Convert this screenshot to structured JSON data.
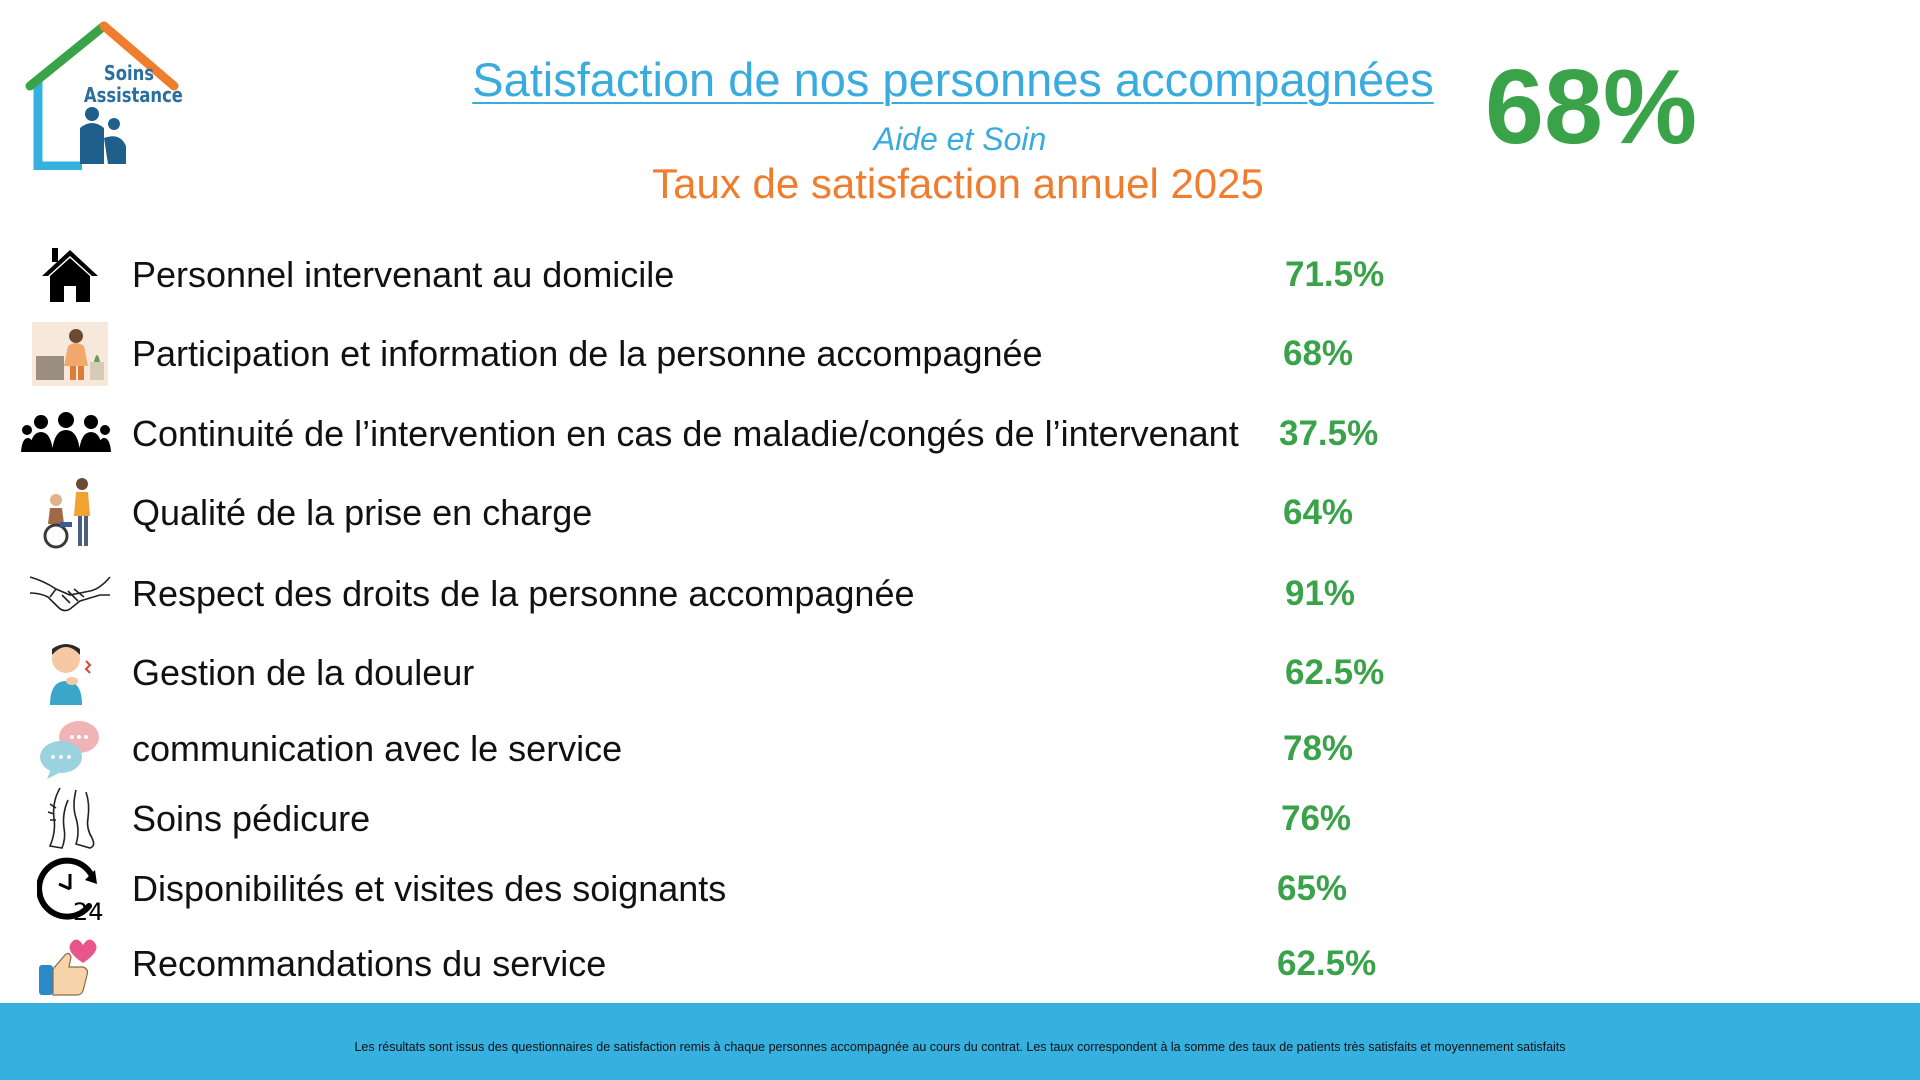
{
  "logo": {
    "line1": "Soins",
    "line2": "Assistance"
  },
  "header": {
    "title": "Satisfaction de nos personnes accompagnées",
    "subtitle": "Aide et Soin",
    "year_line": "Taux de satisfaction annuel 2025",
    "overall": "68%"
  },
  "items": [
    {
      "label": "Personnel intervenant au domicile",
      "value": "71.5%",
      "icon": "house-icon"
    },
    {
      "label": "Participation et information de la personne accompagnée",
      "value": "68%",
      "icon": "meeting-illustration-icon"
    },
    {
      "label": "Continuité de l’intervention en cas de maladie/congés de l’intervenant",
      "value": "37.5%",
      "icon": "group-people-icon"
    },
    {
      "label": "Qualité de la prise en charge",
      "value": "64%",
      "icon": "wheelchair-care-icon"
    },
    {
      "label": "Respect des droits de la personne accompagnée",
      "value": "91%",
      "icon": "handshake-icon"
    },
    {
      "label": "Gestion de la douleur",
      "value": "62.5%",
      "icon": "pain-person-icon"
    },
    {
      "label": "communication avec le service",
      "value": "78%",
      "icon": "chat-bubbles-icon"
    },
    {
      "label": "Soins pédicure",
      "value": "76%",
      "icon": "feet-icon"
    },
    {
      "label": "Disponibilités et visites des soignants",
      "value": "65%",
      "icon": "clock-24-icon"
    },
    {
      "label": "Recommandations du service",
      "value": "62.5%",
      "icon": "thumbs-up-heart-icon"
    }
  ],
  "footer": {
    "note": "Les résultats sont issus des questionnaires de satisfaction remis à chaque personnes accompagnée au cours du contrat. Les taux correspondent à la somme des taux de patients très satisfaits et moyennement satisfaits"
  },
  "colors": {
    "accent_blue": "#3aabde",
    "orange": "#ef7d2d",
    "green": "#3aa34a",
    "footer_bar": "#35b0df"
  }
}
